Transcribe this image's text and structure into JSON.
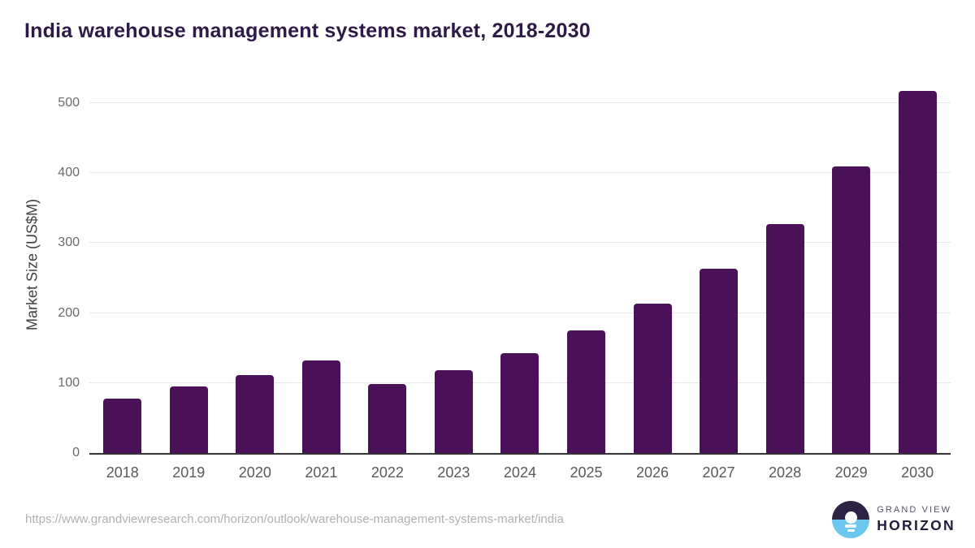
{
  "title": "India warehouse management systems market, 2018-2030",
  "chart_data": {
    "type": "bar",
    "title": "India warehouse management systems market, 2018-2030",
    "categories": [
      "2018",
      "2019",
      "2020",
      "2021",
      "2022",
      "2023",
      "2024",
      "2025",
      "2026",
      "2027",
      "2028",
      "2029",
      "2030"
    ],
    "values": [
      78,
      95,
      111,
      132,
      99,
      118,
      143,
      175,
      213,
      263,
      327,
      409,
      517
    ],
    "xlabel": "",
    "ylabel": "Market Size (US$M)",
    "ylim": [
      0,
      531
    ],
    "yticks": [
      0,
      100,
      200,
      300,
      400,
      500
    ],
    "grid": true,
    "legend_position": "none",
    "bar_color": "#4a1158"
  },
  "colors": {
    "title_text": "#2e1a47",
    "bar": "#4a1158",
    "gridline": "#e7e7e8",
    "axis_line": "#333336",
    "tick_text": "#6b6b6e",
    "logo_dark": "#2d2144",
    "logo_blue": "#6cc7ee"
  },
  "footer": {
    "source_url": "https://www.grandviewresearch.com/horizon/outlook/warehouse-management-systems-market/india",
    "logo": {
      "icon": "horizon-sun-icon",
      "line1": "GRAND VIEW",
      "line2": "HORIZON"
    }
  }
}
